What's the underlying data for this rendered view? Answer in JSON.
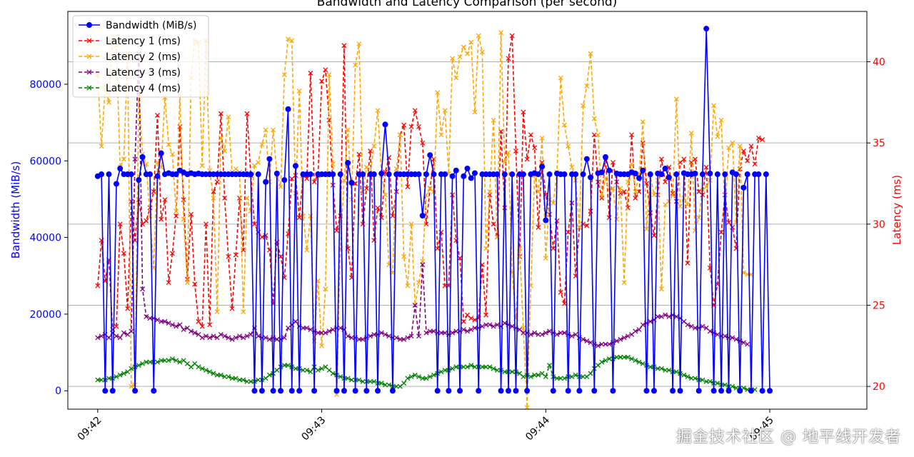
{
  "chart_data": {
    "type": "line",
    "title": "Bandwidth and Latency Comparison (per second)",
    "xlabel": "",
    "ylabel_left": "Bandwidth (MiB/s)",
    "ylabel_right": "Latency (ms)",
    "y_left_lim": [
      -4800,
      99000
    ],
    "y_right_lim": [
      18.6,
      43.1
    ],
    "y_left_ticks": [
      0,
      20000,
      40000,
      60000,
      80000
    ],
    "y_left_tick_labels": [
      "0",
      "20000",
      "40000",
      "60000",
      "80000"
    ],
    "y_right_ticks": [
      20,
      25,
      30,
      35,
      40
    ],
    "y_right_tick_labels": [
      "20",
      "25",
      "30",
      "35",
      "40"
    ],
    "x_lim": [
      -8,
      206
    ],
    "x_ticks": [
      0,
      60,
      120,
      180
    ],
    "x_tick_labels": [
      "09:42",
      "09:43",
      "09:44",
      "09:45"
    ],
    "grid": "right-axis horizontal",
    "legend_position": "top-left",
    "series": [
      {
        "name": "Bandwidth (MiB/s)",
        "axis": "left",
        "color": "#0000ff",
        "marker": "circle",
        "linestyle": "solid",
        "values": [
          56000,
          56500,
          0,
          56500,
          0,
          54000,
          58000,
          56500,
          56500,
          56500,
          0,
          55000,
          61000,
          56500,
          56500,
          0,
          56000,
          62000,
          56500,
          56800,
          56500,
          56500,
          57500,
          57000,
          56500,
          56800,
          56500,
          56700,
          56500,
          56500,
          56500,
          56500,
          56500,
          56500,
          56500,
          56500,
          56500,
          56500,
          56500,
          56500,
          56500,
          56500,
          0,
          56500,
          0,
          54500,
          60500,
          0,
          56700,
          0,
          55000,
          73500,
          0,
          58700,
          0,
          56500,
          56500,
          56500,
          0,
          56500,
          56500,
          56500,
          56500,
          56500,
          0,
          56500,
          0,
          59500,
          54300,
          0,
          56500,
          56500,
          0,
          56500,
          56500,
          0,
          56700,
          69500,
          56500,
          0,
          56500,
          56500,
          56500,
          56500,
          56500,
          56500,
          56500,
          45700,
          56500,
          61500,
          56500,
          0,
          56500,
          56500,
          0,
          56000,
          57500,
          0,
          56000,
          58000,
          55500,
          56800,
          0,
          56500,
          56500,
          56500,
          56500,
          56500,
          0,
          56500,
          0,
          56500,
          0,
          56500,
          56500,
          0,
          56500,
          56800,
          56500,
          58500,
          44500,
          56500,
          0,
          56700,
          56500,
          56500,
          0,
          56500,
          56500,
          0,
          56500,
          60500,
          55700,
          0,
          56800,
          57000,
          61000,
          57500,
          0,
          56700,
          56500,
          56500,
          56500,
          57000,
          56700,
          55500,
          57500,
          0,
          56500,
          0,
          56700,
          56500,
          58000,
          55700,
          0,
          56500,
          0,
          56800,
          56500,
          56500,
          56700,
          0,
          56500,
          94500,
          56700,
          0,
          56500,
          0,
          56500,
          0,
          57000,
          56500,
          0,
          53000,
          56500,
          0,
          56500,
          56500,
          0,
          56500,
          0
        ]
      },
      {
        "name": "Latency 1 (ms)",
        "axis": "right",
        "color": "#ff0000",
        "marker": "x",
        "linestyle": "dashed",
        "values": [
          26.2,
          29.0,
          26.5,
          27.8,
          23.5,
          23.7,
          30.0,
          28.2,
          24.8,
          31.4,
          29.0,
          31.5,
          30.0,
          30.2,
          31.0,
          32.0,
          36.7,
          30.3,
          31.5,
          26.4,
          28.2,
          30.5,
          36.0,
          31.5,
          26.6,
          30.6,
          26.3,
          24.0,
          23.7,
          30.0,
          23.8,
          32.0,
          32.6,
          36.8,
          31.6,
          28.0,
          24.8,
          28.1,
          31.6,
          28.4,
          36.8,
          33.0,
          30.0,
          29.5,
          29.2,
          29.3,
          28.4,
          25.1,
          28.9,
          28.0,
          26.7,
          29.4,
          32.8,
          33.0,
          30.4,
          33.0,
          32.8,
          39.3,
          32.6,
          33.0,
          38.8,
          39.5,
          36.4,
          32.4,
          29.6,
          30.5,
          41.0,
          28.5,
          26.7,
          32.5,
          34.3,
          30.0,
          32.2,
          34.5,
          29.0,
          31.0,
          30.4,
          33.2,
          34.1,
          30.5,
          32.0,
          35.5,
          36.1,
          32.3,
          36.0,
          37.0,
          36.0,
          35.0,
          30.0,
          32.2,
          34.0,
          28.5,
          29.5,
          26.2,
          26.2,
          31.8,
          29.0,
          27.9,
          24.0,
          24.4,
          24.2,
          24.1,
          24.2,
          27.5,
          24.4,
          31.8,
          30.0,
          29.2,
          35.7,
          31.0,
          40.2,
          41.6,
          34.5,
          28.0,
          36.9,
          34.0,
          35.5,
          34.7,
          29.8,
          33.8,
          31.8,
          30.6,
          28.5,
          30.2,
          25.8,
          25.1,
          29.5,
          31.3,
          26.8,
          29.8,
          30.0,
          29.9,
          30.8,
          35.5,
          32.6,
          31.6,
          34.1,
          30.4,
          33.8,
          32.6,
          31.9,
          32.0,
          31.0,
          35.5,
          31.6,
          32.0,
          35.0,
          32.5,
          30.7,
          29.3,
          31.8,
          34.0,
          32.6,
          33.5,
          31.9,
          31.4,
          33.8,
          34.0,
          27.6,
          33.8,
          34.0,
          32.0,
          31.8,
          33.5,
          27.3,
          25.0,
          26.3,
          29.5,
          31.8,
          30.1,
          29.8,
          28.5,
          33.4,
          34.5,
          33.9,
          34.8,
          33.7,
          35.3,
          35.2
        ]
      },
      {
        "name": "Latency 2 (ms)",
        "axis": "right",
        "color": "#ffa500",
        "marker": "x",
        "linestyle": "dashed",
        "values": [
          39.2,
          34.8,
          38.5,
          37.5,
          41.4,
          41.0,
          33.5,
          34.0,
          40.5,
          20.0,
          20.1,
          38.0,
          34.3,
          33.7,
          30.5,
          27.3,
          33.8,
          33.5,
          37.8,
          34.9,
          34.3,
          30.8,
          38.0,
          30.3,
          26.4,
          39.0,
          41.3,
          41.2,
          33.6,
          41.3,
          33.3,
          31.6,
          24.6,
          35.3,
          34.5,
          36.6,
          33.2,
          33.4,
          33.2,
          24.6,
          31.6,
          30.8,
          33.6,
          33.8,
          34.9,
          35.8,
          32.6,
          35.8,
          33.0,
          32.3,
          39.2,
          41.4,
          41.3,
          31.9,
          38.2,
          30.5,
          28.4,
          30.5,
          22.8,
          26.5,
          22.5,
          26.0,
          39.2,
          33.7,
          19.5,
          28.5,
          32.7,
          35.8,
          31.5,
          39.8,
          41.1,
          32.0,
          33.5,
          33.1,
          34.8,
          37.0,
          33.0,
          31.8,
          27.5,
          27.0,
          33.4,
          35.5,
          28.0,
          26.2,
          30.0,
          25.0,
          26.4,
          27.7,
          31.8,
          32.2,
          32.0,
          38.1,
          35.5,
          37.0,
          33.1,
          40.2,
          39.0,
          40.3,
          40.9,
          40.5,
          41.2,
          36.9,
          41.6,
          40.6,
          28.5,
          32.0,
          36.4,
          29.2,
          41.8,
          33.8,
          34.4,
          27.0,
          24.2,
          28.5,
          23.6,
          18.7,
          26.2,
          33.0,
          32.0,
          35.3,
          27.9,
          31.5,
          31.3,
          33.2,
          39.0,
          36.1,
          34.8,
          33.5,
          32.7,
          29.8,
          37.3,
          38.5,
          40.5,
          36.5,
          35.5,
          31.7,
          32.8,
          32.1,
          32.2,
          30.3,
          32.2,
          26.4,
          32.6,
          33.7,
          32.0,
          33.1,
          36.3,
          29.7,
          33.0,
          31.8,
          32.7,
          26.0,
          31.2,
          31.4,
          31.8,
          37.7,
          31.1,
          31.6,
          31.2,
          35.6,
          29.6,
          30.4,
          32.1,
          32.3,
          32.7,
          37.3,
          35.4,
          36.4,
          30.6,
          34.7,
          35.0,
          30.1,
          34.8,
          27.0,
          26.9,
          26.9
        ]
      },
      {
        "name": "Latency 3 (ms)",
        "axis": "right",
        "color": "#800080",
        "marker": "x",
        "linestyle": "dashed",
        "values": [
          23.0,
          23.1,
          23.2,
          23.0,
          23.3,
          23.1,
          23.0,
          23.3,
          23.2,
          23.4,
          34.0,
          40.5,
          26.0,
          24.3,
          24.2,
          24.2,
          24.1,
          24.0,
          24.0,
          23.9,
          23.8,
          23.7,
          23.8,
          23.5,
          23.6,
          23.4,
          23.3,
          23.2,
          23.0,
          23.1,
          23.0,
          23.1,
          23.0,
          23.2,
          23.1,
          23.0,
          22.9,
          23.0,
          23.1,
          23.0,
          23.1,
          23.2,
          23.6,
          23.1,
          23.0,
          23.0,
          22.9,
          23.0,
          22.9,
          22.9,
          23.0,
          23.6,
          23.8,
          24.0,
          23.7,
          23.6,
          23.6,
          23.5,
          23.4,
          23.3,
          23.3,
          23.3,
          23.4,
          23.5,
          23.6,
          23.6,
          23.5,
          23.1,
          23.0,
          23.0,
          22.9,
          22.9,
          23.0,
          23.1,
          23.2,
          23.2,
          23.3,
          23.2,
          23.1,
          23.0,
          23.0,
          22.9,
          22.9,
          23.0,
          23.1,
          25.0,
          23.1,
          27.5,
          23.3,
          23.4,
          23.4,
          23.3,
          23.3,
          23.3,
          23.2,
          23.3,
          23.4,
          23.4,
          23.5,
          23.4,
          23.5,
          23.6,
          23.6,
          23.7,
          23.8,
          23.8,
          23.7,
          23.8,
          23.7,
          23.9,
          23.8,
          23.7,
          23.6,
          23.5,
          23.3,
          23.3,
          23.2,
          23.3,
          23.2,
          23.2,
          23.3,
          23.4,
          23.3,
          23.2,
          23.3,
          23.3,
          23.2,
          23.1,
          23.2,
          23.0,
          22.9,
          22.8,
          22.7,
          22.6,
          22.5,
          22.6,
          22.6,
          22.6,
          22.7,
          22.8,
          22.9,
          23.0,
          23.1,
          23.2,
          23.4,
          23.5,
          23.8,
          23.9,
          24.0,
          24.1,
          24.3,
          24.3,
          24.4,
          24.3,
          24.4,
          24.3,
          24.2,
          24.0,
          23.8,
          23.7,
          23.6,
          23.6,
          23.7,
          23.6,
          23.4,
          23.3,
          23.2,
          23.1,
          23.1,
          23.0,
          23.0,
          22.9,
          22.8,
          22.7,
          22.6
        ]
      },
      {
        "name": "Latency 4 (ms)",
        "axis": "right",
        "color": "#008000",
        "marker": "x",
        "linestyle": "dashed",
        "values": [
          20.4,
          20.4,
          20.4,
          20.5,
          20.5,
          20.6,
          20.7,
          20.8,
          20.9,
          21.1,
          21.2,
          21.3,
          21.4,
          21.5,
          21.5,
          21.5,
          21.5,
          21.6,
          21.6,
          21.6,
          21.7,
          21.6,
          21.5,
          21.6,
          21.4,
          21.2,
          21.4,
          21.2,
          21.1,
          21.0,
          20.9,
          20.8,
          20.7,
          20.7,
          20.6,
          20.6,
          20.5,
          20.5,
          20.4,
          20.4,
          20.3,
          20.3,
          20.3,
          20.4,
          20.4,
          20.5,
          20.7,
          20.8,
          21.0,
          21.2,
          21.3,
          21.3,
          21.2,
          21.1,
          21.1,
          21.0,
          21.0,
          20.9,
          21.2,
          21.0,
          21.1,
          21.2,
          21.0,
          20.8,
          20.7,
          20.6,
          20.5,
          20.5,
          20.4,
          20.4,
          20.4,
          20.3,
          20.3,
          20.3,
          20.3,
          20.2,
          20.2,
          20.1,
          20.1,
          20.0,
          20.0,
          20.0,
          20.2,
          20.5,
          20.6,
          20.7,
          20.6,
          20.5,
          20.5,
          20.6,
          20.7,
          20.8,
          20.9,
          21.0,
          21.0,
          21.1,
          21.2,
          21.2,
          21.2,
          21.2,
          21.3,
          21.2,
          21.2,
          21.2,
          21.2,
          21.2,
          21.1,
          21.0,
          21.0,
          20.9,
          20.9,
          20.9,
          20.9,
          20.8,
          20.6,
          20.7,
          20.6,
          20.7,
          20.7,
          20.8,
          20.6,
          21.3,
          20.6,
          20.5,
          20.5,
          20.5,
          20.6,
          20.6,
          20.7,
          20.6,
          20.6,
          20.6,
          20.8,
          21.1,
          21.3,
          21.5,
          21.6,
          21.7,
          21.7,
          21.8,
          21.8,
          21.8,
          21.8,
          21.7,
          21.6,
          21.5,
          21.4,
          21.3,
          21.2,
          21.2,
          21.1,
          21.1,
          21.0,
          21.0,
          20.9,
          20.9,
          20.8,
          20.7,
          20.6,
          20.5,
          20.5,
          20.4,
          20.4,
          20.3,
          20.3,
          20.2,
          20.2,
          20.1,
          20.1,
          20.0,
          20.0,
          19.9,
          19.9,
          19.9,
          19.8,
          19.8,
          19.8
        ]
      }
    ]
  },
  "watermark": "掘金技术社区 @ 地平线开发者"
}
